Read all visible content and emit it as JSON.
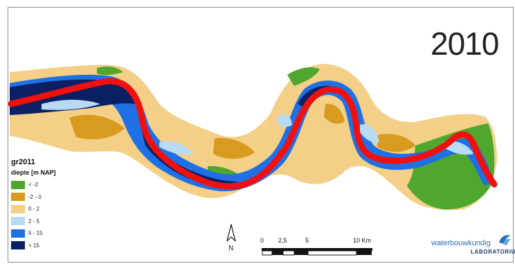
{
  "year": "2010",
  "legend": {
    "title": "gr2011",
    "subtitle": "diepte [m NAP]",
    "items": [
      {
        "label": "< -2",
        "color": "#4fa72e"
      },
      {
        "label": "-2 - 0",
        "color": "#d99b1f"
      },
      {
        "label": "0 - 2",
        "color": "#f3cf87"
      },
      {
        "label": "2 - 5",
        "color": "#b9dbf2"
      },
      {
        "label": "5 - 15",
        "color": "#1f70e5"
      },
      {
        "label": "> 15",
        "color": "#0b1f63"
      }
    ]
  },
  "north": {
    "label": "N"
  },
  "scalebar": {
    "ticks": [
      "0",
      "2,5",
      "5",
      "10"
    ],
    "units": "Km"
  },
  "logo": {
    "line1": "waterbouwkundig",
    "line2": "LABORATORIUM"
  },
  "colors": {
    "channel_line": "#f01010",
    "deep": "#0b1f63",
    "mid": "#1f70e5",
    "shallow": "#b9dbf2",
    "sand": "#f3cf87",
    "orange": "#d99b1f",
    "green": "#4fa72e"
  }
}
